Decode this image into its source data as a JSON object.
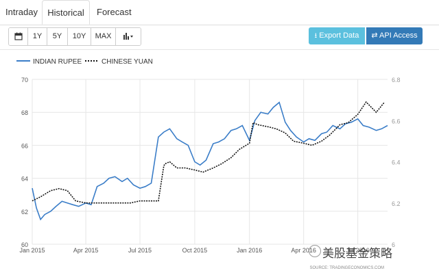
{
  "tabs": [
    {
      "label": "Intraday",
      "active": false
    },
    {
      "label": "Historical",
      "active": true
    },
    {
      "label": "Forecast",
      "active": false
    }
  ],
  "toolbar": {
    "calendar_icon": "calendar-icon",
    "ranges": [
      "1Y",
      "5Y",
      "10Y",
      "MAX"
    ],
    "chart_type_icon": "bar-chart-icon",
    "export_label": "Export Data",
    "api_label": "API Access",
    "export_icon": "download-icon",
    "api_icon": "swap-icon"
  },
  "colors": {
    "rupee": "#3a7dc8",
    "yuan": "#111111",
    "grid": "#e6e6e6",
    "axis_text": "#555555"
  },
  "watermark": "美股基金策略",
  "source": "SOURCE: TRADINGECONOMICS.COM",
  "chart_data": {
    "type": "line",
    "legend": "top-left",
    "grid": true,
    "x_ticks": [
      "Jan 2015",
      "Apr 2015",
      "Jul 2015",
      "Oct 2015",
      "Jan 2016",
      "Apr 2016",
      "Jul 2016"
    ],
    "x_range": [
      "2015-01-01",
      "2016-08-20"
    ],
    "y_left": {
      "ticks": [
        60,
        62,
        64,
        66,
        68,
        70
      ],
      "range": [
        60,
        70
      ]
    },
    "y_right": {
      "ticks": [
        6,
        6.2,
        6.4,
        6.6,
        6.8
      ],
      "range": [
        6,
        6.8
      ]
    },
    "series": [
      {
        "name": "INDIAN RUPEE",
        "axis": "left",
        "style": "solid",
        "x": [
          "2015-01-01",
          "2015-01-08",
          "2015-01-15",
          "2015-01-22",
          "2015-02-01",
          "2015-02-10",
          "2015-02-20",
          "2015-03-01",
          "2015-03-10",
          "2015-03-20",
          "2015-04-01",
          "2015-04-10",
          "2015-04-20",
          "2015-05-01",
          "2015-05-10",
          "2015-05-20",
          "2015-06-01",
          "2015-06-10",
          "2015-06-20",
          "2015-07-01",
          "2015-07-10",
          "2015-07-20",
          "2015-08-01",
          "2015-08-10",
          "2015-08-20",
          "2015-09-01",
          "2015-09-10",
          "2015-09-20",
          "2015-10-01",
          "2015-10-10",
          "2015-10-20",
          "2015-11-01",
          "2015-11-10",
          "2015-11-20",
          "2015-12-01",
          "2015-12-10",
          "2015-12-20",
          "2016-01-01",
          "2016-01-10",
          "2016-01-20",
          "2016-02-01",
          "2016-02-10",
          "2016-02-20",
          "2016-03-01",
          "2016-03-10",
          "2016-03-20",
          "2016-04-01",
          "2016-04-10",
          "2016-04-20",
          "2016-05-01",
          "2016-05-10",
          "2016-05-20",
          "2016-06-01",
          "2016-06-10",
          "2016-06-20",
          "2016-07-01",
          "2016-07-10",
          "2016-07-20",
          "2016-08-01",
          "2016-08-10",
          "2016-08-20"
        ],
        "values": [
          63.4,
          62.2,
          61.5,
          61.8,
          62.0,
          62.3,
          62.6,
          62.5,
          62.4,
          62.3,
          62.5,
          62.4,
          63.5,
          63.7,
          64.0,
          64.1,
          63.8,
          64.0,
          63.6,
          63.4,
          63.5,
          63.7,
          66.5,
          66.8,
          67.0,
          66.4,
          66.2,
          66.0,
          65.0,
          64.8,
          65.1,
          66.1,
          66.2,
          66.4,
          66.9,
          67.0,
          67.2,
          66.3,
          67.5,
          68.0,
          67.9,
          68.3,
          68.6,
          67.4,
          66.9,
          66.5,
          66.2,
          66.4,
          66.3,
          66.7,
          66.8,
          67.2,
          67.0,
          67.3,
          67.4,
          67.6,
          67.2,
          67.1,
          66.9,
          67.0,
          67.2
        ]
      },
      {
        "name": "CHINESE YUAN",
        "axis": "right",
        "style": "dotted",
        "x": [
          "2015-01-01",
          "2015-01-15",
          "2015-02-01",
          "2015-02-15",
          "2015-03-01",
          "2015-03-15",
          "2015-04-01",
          "2015-04-15",
          "2015-05-01",
          "2015-05-15",
          "2015-06-01",
          "2015-06-15",
          "2015-07-01",
          "2015-07-15",
          "2015-08-01",
          "2015-08-10",
          "2015-08-12",
          "2015-08-20",
          "2015-09-01",
          "2015-09-15",
          "2015-10-01",
          "2015-10-15",
          "2015-11-01",
          "2015-11-15",
          "2015-12-01",
          "2015-12-15",
          "2016-01-01",
          "2016-01-07",
          "2016-01-15",
          "2016-02-01",
          "2016-02-15",
          "2016-03-01",
          "2016-03-15",
          "2016-04-01",
          "2016-04-15",
          "2016-05-01",
          "2016-05-15",
          "2016-06-01",
          "2016-06-15",
          "2016-07-01",
          "2016-07-15",
          "2016-08-01",
          "2016-08-15"
        ],
        "values": [
          6.21,
          6.23,
          6.26,
          6.27,
          6.26,
          6.21,
          6.2,
          6.2,
          6.2,
          6.2,
          6.2,
          6.2,
          6.21,
          6.21,
          6.21,
          6.38,
          6.39,
          6.4,
          6.37,
          6.37,
          6.36,
          6.35,
          6.37,
          6.39,
          6.42,
          6.46,
          6.49,
          6.59,
          6.58,
          6.57,
          6.56,
          6.54,
          6.5,
          6.49,
          6.48,
          6.5,
          6.53,
          6.58,
          6.59,
          6.63,
          6.69,
          6.64,
          6.69
        ]
      }
    ]
  }
}
